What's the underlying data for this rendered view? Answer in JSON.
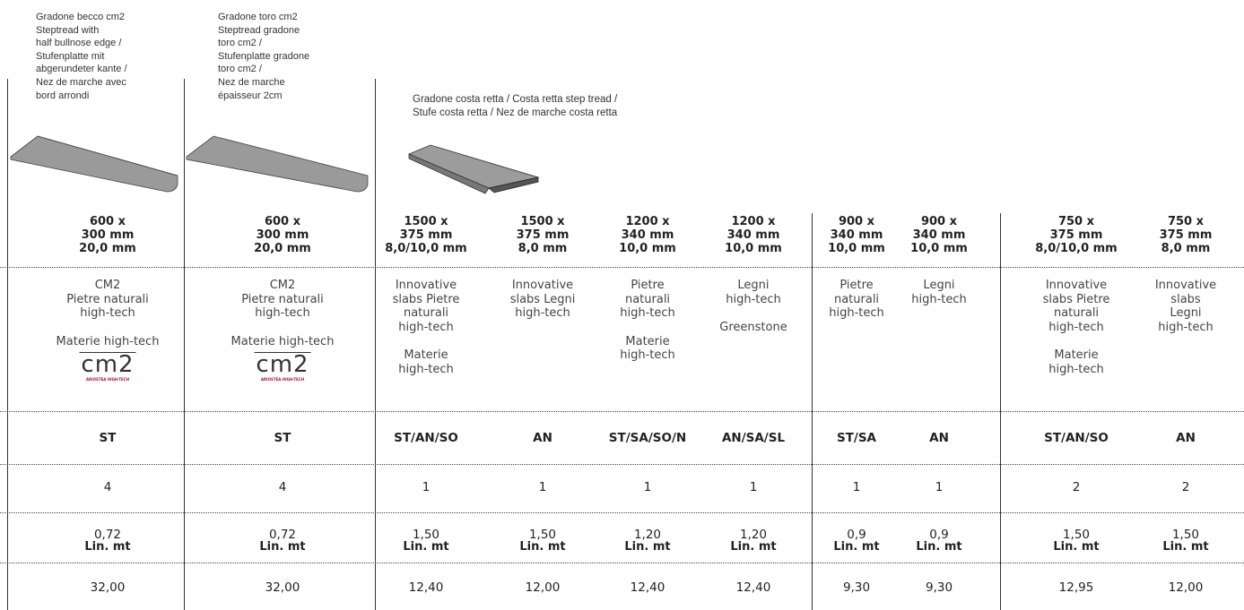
{
  "descriptions": [
    "Gradone becco cm2\nSteptread with\nhalf bullnose  edge /\nStufenplatte mit\nabgerundeter kante /\nNez de marche avec\nbord arrondi",
    "Gradone toro cm2\nSteptread gradone\ntoro cm2 /\nStufenplatte gradone\ntoro cm2  /\nNez de marche\népaisseur 2cm",
    "Gradone costa retta / Costa retta step tread /\nStufe costa retta / Nez de marche costa retta"
  ],
  "columns": [
    {
      "size": [
        "600 x",
        "300 mm",
        "20,0 mm"
      ],
      "materials": [
        "CM2\nPietre naturali\nhigh-tech",
        "Materie high-tech"
      ],
      "logo": {
        "mark": "cm2",
        "caption": "ARIOSTEA HIGH-TECH"
      },
      "code": "ST",
      "qty": "4",
      "length": "0,72",
      "unit": "Lin. mt",
      "price": "32,00"
    },
    {
      "size": [
        "600 x",
        "300 mm",
        "20,0 mm"
      ],
      "materials": [
        "CM2\nPietre naturali\nhigh-tech",
        "Materie high-tech"
      ],
      "logo": {
        "mark": "cm2",
        "caption": "ARIOSTEA HIGH-TECH"
      },
      "code": "ST",
      "qty": "4",
      "length": "0,72",
      "unit": "Lin. mt",
      "price": "32,00"
    },
    {
      "size": [
        "1500 x",
        "375 mm",
        "8,0/10,0 mm"
      ],
      "materials": [
        "Innovative\nslabs Pietre\nnaturali\nhigh-tech",
        "Materie\nhigh-tech"
      ],
      "code": "ST/AN/SO",
      "qty": "1",
      "length": "1,50",
      "unit": "Lin. mt",
      "price": "12,40"
    },
    {
      "size": [
        "1500 x",
        "375 mm",
        "8,0 mm"
      ],
      "materials": [
        "Innovative\nslabs Legni\nhigh-tech"
      ],
      "code": "AN",
      "qty": "1",
      "length": "1,50",
      "unit": "Lin. mt",
      "price": "12,00"
    },
    {
      "size": [
        "1200 x",
        "340 mm",
        "10,0 mm"
      ],
      "materials": [
        "Pietre\nnaturali\nhigh-tech",
        "Materie\nhigh-tech"
      ],
      "code": "ST/SA/SO/N",
      "qty": "1",
      "length": "1,20",
      "unit": "Lin. mt",
      "price": "12,40"
    },
    {
      "size": [
        "1200 x",
        "340 mm",
        "10,0 mm"
      ],
      "materials": [
        "Legni\nhigh-tech",
        "Greenstone"
      ],
      "code": "AN/SA/SL",
      "qty": "1",
      "length": "1,20",
      "unit": "Lin. mt",
      "price": "12,40"
    },
    {
      "size": [
        "900 x",
        "340 mm",
        "10,0 mm"
      ],
      "materials": [
        "Pietre\nnaturali\nhigh-tech"
      ],
      "code": "ST/SA",
      "qty": "1",
      "length": "0,9",
      "unit": "Lin. mt",
      "price": "9,30"
    },
    {
      "size": [
        "900 x",
        "340 mm",
        "10,0 mm"
      ],
      "materials": [
        "Legni\nhigh-tech"
      ],
      "code": "AN",
      "qty": "1",
      "length": "0,9",
      "unit": "Lin. mt",
      "price": "9,30"
    },
    {
      "size": [
        "750 x",
        "375 mm",
        "8,0/10,0 mm"
      ],
      "materials": [
        "Innovative\nslabs Pietre\nnaturali\nhigh-tech",
        "Materie\nhigh-tech"
      ],
      "code": "ST/AN/SO",
      "qty": "2",
      "length": "1,50",
      "unit": "Lin. mt",
      "price": "12,95"
    },
    {
      "size": [
        "750 x",
        "375 mm",
        "8,0 mm"
      ],
      "materials": [
        "Innovative\nslabs Legni\nhigh-tech"
      ],
      "code": "AN",
      "qty": "2",
      "length": "1,50",
      "unit": "Lin. mt",
      "price": "12,00"
    }
  ]
}
